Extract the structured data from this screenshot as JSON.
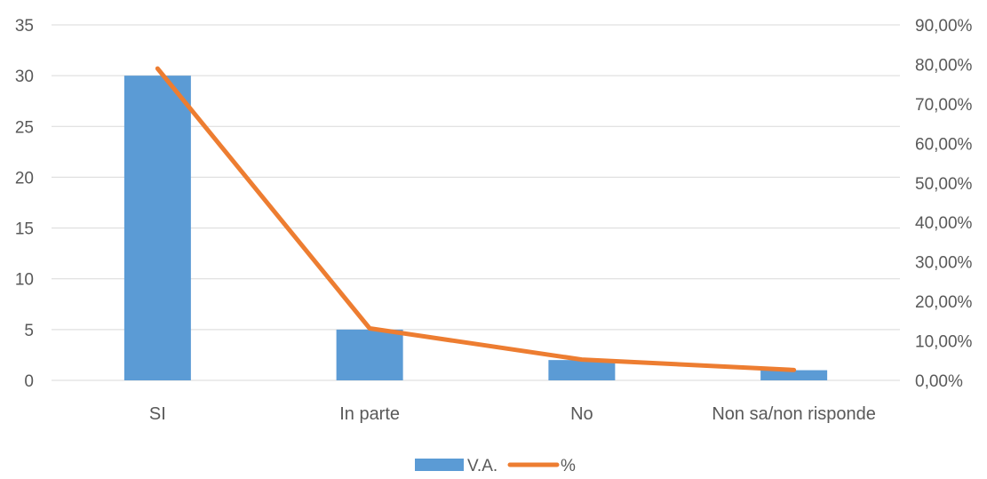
{
  "chart_data": {
    "type": "bar",
    "title": "",
    "categories": [
      "SI",
      "In parte",
      "No",
      "Non sa/non risponde"
    ],
    "series": [
      {
        "name": "V.A.",
        "type": "bar",
        "axis": "left",
        "color": "#5B9BD5",
        "values": [
          30,
          5,
          2,
          1
        ]
      },
      {
        "name": "%",
        "type": "line",
        "axis": "right",
        "color": "#ED7D31",
        "values": [
          0.7895,
          0.1316,
          0.0526,
          0.0263
        ]
      }
    ],
    "y_left": {
      "min": 0,
      "max": 35,
      "ticks": [
        0,
        5,
        10,
        15,
        20,
        25,
        30,
        35
      ],
      "tick_labels": [
        "0",
        "5",
        "10",
        "15",
        "20",
        "25",
        "30",
        "35"
      ]
    },
    "y_right": {
      "min": 0,
      "max": 0.9,
      "ticks": [
        0,
        0.1,
        0.2,
        0.3,
        0.4,
        0.5,
        0.6,
        0.7,
        0.8,
        0.9
      ],
      "tick_labels": [
        "0,00%",
        "10,00%",
        "20,00%",
        "30,00%",
        "40,00%",
        "50,00%",
        "60,00%",
        "70,00%",
        "80,00%",
        "90,00%"
      ]
    },
    "grid": true,
    "legend": {
      "position": "bottom",
      "items": [
        "V.A.",
        "%"
      ]
    },
    "gridline_color": "#D9D9D9",
    "text_color": "#595959"
  }
}
